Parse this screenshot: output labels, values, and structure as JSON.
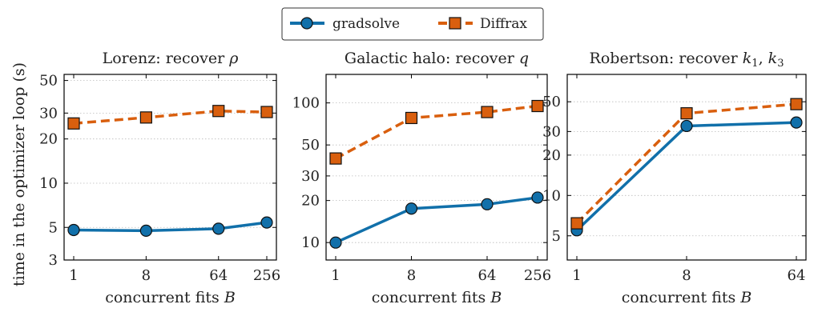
{
  "legend": [
    {
      "name": "gradsolve",
      "color": "#1170aa",
      "marker": "circle",
      "dash": "solid"
    },
    {
      "name": "Diffrax",
      "color": "#d95f0e",
      "marker": "square",
      "dash": "dashed"
    }
  ],
  "ylabel": "time in the optimizer loop (s)",
  "chart_data": [
    {
      "type": "line",
      "title": "Lorenz: recover ",
      "title_math": "ρ",
      "xlabel": "concurrent fits ",
      "xlabel_math": "B",
      "xscale": "log2",
      "yscale": "log",
      "x": [
        1,
        8,
        64,
        256
      ],
      "xticks": [
        1,
        8,
        64,
        256
      ],
      "xtick_labels": [
        "1",
        "8",
        "64",
        "256"
      ],
      "ylim": [
        3,
        55
      ],
      "yticks": [
        3,
        5,
        10,
        20,
        30,
        50
      ],
      "ytick_labels": [
        "3",
        "5",
        "10",
        "20",
        "30",
        "50"
      ],
      "grid": true,
      "series": [
        {
          "name": "gradsolve",
          "values": [
            4.8,
            4.75,
            4.9,
            5.4
          ]
        },
        {
          "name": "Diffrax",
          "values": [
            25.5,
            28,
            31,
            30.5
          ]
        }
      ]
    },
    {
      "type": "line",
      "title": "Galactic halo: recover ",
      "title_math": "q",
      "xlabel": "concurrent fits ",
      "xlabel_math": "B",
      "xscale": "log2",
      "yscale": "log",
      "x": [
        1,
        8,
        64,
        256
      ],
      "xticks": [
        1,
        8,
        64,
        256
      ],
      "xtick_labels": [
        "1",
        "8",
        "64",
        "256"
      ],
      "ylim": [
        7.5,
        160
      ],
      "yticks": [
        10,
        20,
        30,
        50,
        100
      ],
      "ytick_labels": [
        "10",
        "20",
        "30",
        "50",
        "100"
      ],
      "grid": true,
      "series": [
        {
          "name": "gradsolve",
          "values": [
            10,
            17.5,
            18.8,
            21
          ]
        },
        {
          "name": "Diffrax",
          "values": [
            40,
            78,
            86,
            95
          ]
        }
      ]
    },
    {
      "type": "line",
      "title": "Robertson: recover ",
      "title_math": "k",
      "title_math_sub1": "1",
      "title_math_sep": ", ",
      "title_math_sub2": "3",
      "xlabel": "concurrent fits ",
      "xlabel_math": "B",
      "xscale": "log2",
      "yscale": "log",
      "x": [
        1,
        8,
        64
      ],
      "xticks": [
        1,
        8,
        64
      ],
      "xtick_labels": [
        "1",
        "8",
        "64"
      ],
      "ylim": [
        3.3,
        80
      ],
      "yticks": [
        5,
        10,
        20,
        30,
        50
      ],
      "ytick_labels": [
        "5",
        "10",
        "20",
        "30",
        "50"
      ],
      "grid": true,
      "series": [
        {
          "name": "gradsolve",
          "values": [
            5.5,
            33,
            35
          ]
        },
        {
          "name": "Diffrax",
          "values": [
            6.2,
            41,
            48
          ]
        }
      ]
    }
  ]
}
